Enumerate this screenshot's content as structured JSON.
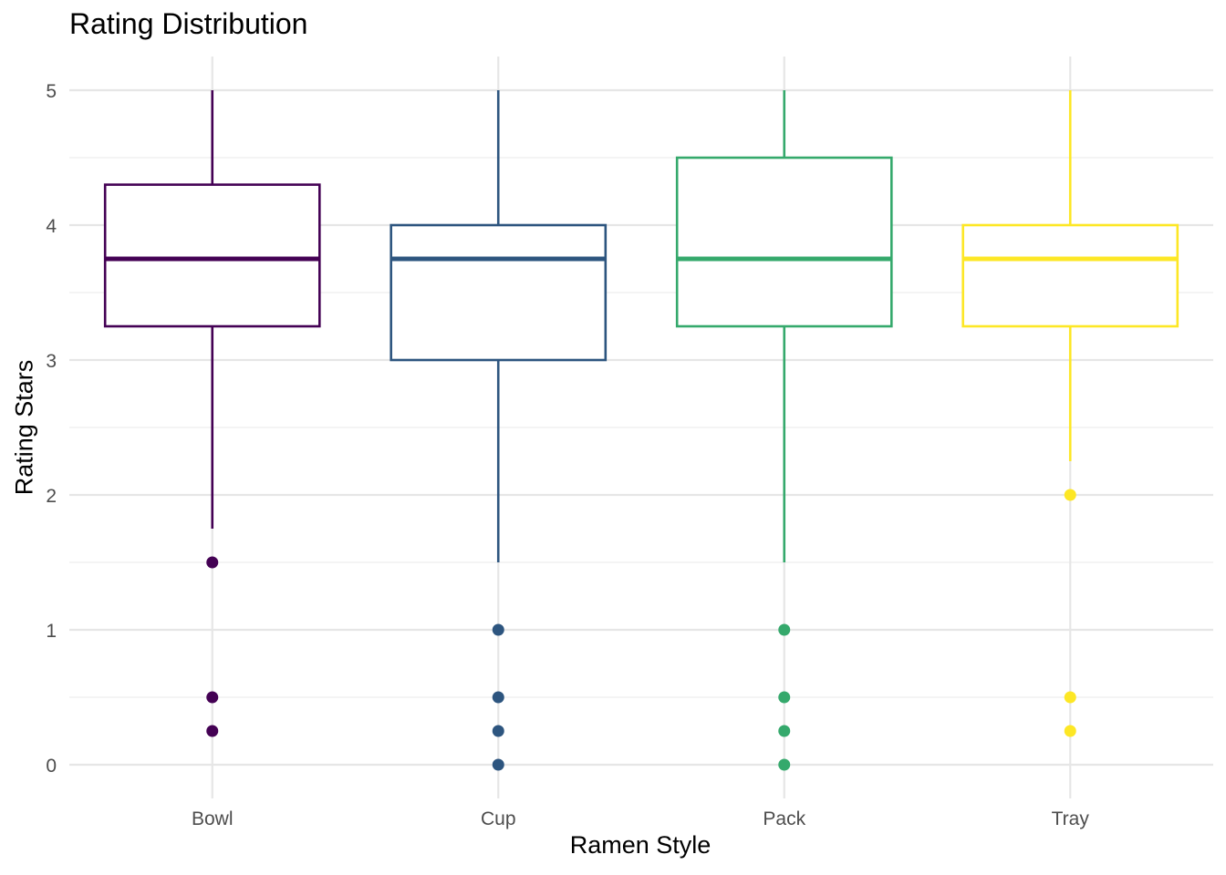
{
  "chart_data": {
    "type": "boxplot",
    "title": "Rating Distribution",
    "xlabel": "Ramen Style",
    "ylabel": "Rating Stars",
    "categories": [
      "Bowl",
      "Cup",
      "Pack",
      "Tray"
    ],
    "ylim": [
      -0.25,
      5.25
    ],
    "yticks": [
      0,
      1,
      2,
      3,
      4,
      5
    ],
    "grid": true,
    "legend": "none",
    "boxes": [
      {
        "category": "Bowl",
        "whisker_low": 1.75,
        "q1": 3.25,
        "median": 3.75,
        "q3": 4.3,
        "whisker_high": 5,
        "outliers": [
          1.5,
          0.5,
          0.25
        ],
        "color": "#440154"
      },
      {
        "category": "Cup",
        "whisker_low": 1.5,
        "q1": 3.0,
        "median": 3.75,
        "q3": 4.0,
        "whisker_high": 5,
        "outliers": [
          1.0,
          0.5,
          0.25,
          0.0
        ],
        "color": "#2D557F"
      },
      {
        "category": "Pack",
        "whisker_low": 1.5,
        "q1": 3.25,
        "median": 3.75,
        "q3": 4.5,
        "whisker_high": 5,
        "outliers": [
          1.0,
          0.5,
          0.25,
          0.0
        ],
        "color": "#35A96C"
      },
      {
        "category": "Tray",
        "whisker_low": 2.25,
        "q1": 3.25,
        "median": 3.75,
        "q3": 4.0,
        "whisker_high": 5,
        "outliers": [
          2.0,
          0.5,
          0.25
        ],
        "color": "#FDE725"
      }
    ]
  },
  "colors": {
    "grid_major": "#e6e6e6",
    "grid_minor": "#f0f0f0",
    "tick_label": "#4d4d4d"
  }
}
